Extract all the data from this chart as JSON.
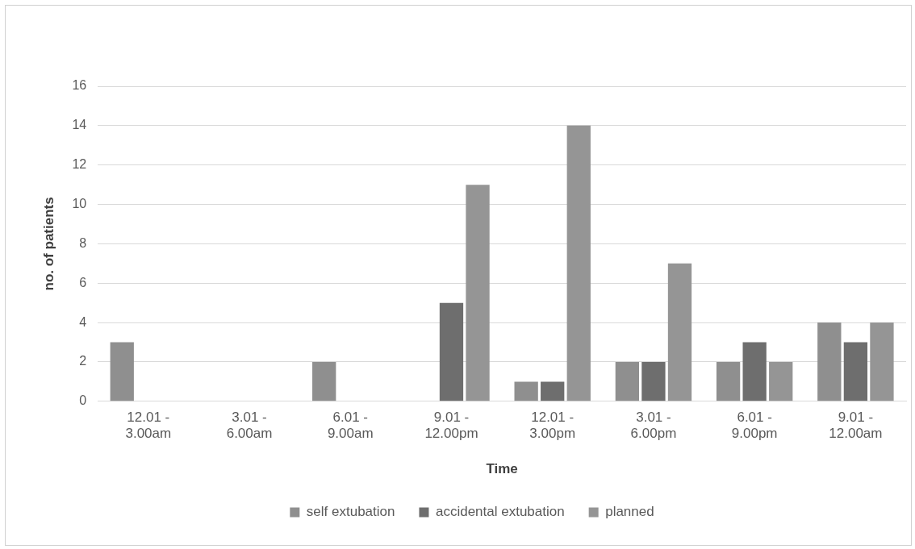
{
  "chart_data": {
    "type": "bar",
    "xlabel": "Time",
    "ylabel": "no. of patients",
    "categories": [
      "12.01 -\n3.00am",
      "3.01 -\n6.00am",
      "6.01 -\n9.00am",
      "9.01 -\n12.00pm",
      "12.01 -\n3.00pm",
      "3.01 -\n6.00pm",
      "6.01 -\n9.00pm",
      "9.01 -\n12.00am"
    ],
    "series": [
      {
        "name": "self extubation",
        "color": "#8f8f8f",
        "values": [
          3,
          0,
          2,
          0,
          1,
          2,
          2,
          4
        ]
      },
      {
        "name": "accidental extubation",
        "color": "#6e6e6e",
        "values": [
          0,
          0,
          0,
          5,
          1,
          2,
          3,
          3
        ]
      },
      {
        "name": "planned",
        "color": "#959595",
        "values": [
          0,
          0,
          0,
          11,
          14,
          7,
          2,
          4
        ]
      }
    ],
    "ylim": [
      0,
      16
    ],
    "yticks": [
      0,
      2,
      4,
      6,
      8,
      10,
      12,
      14,
      16
    ],
    "grid": "y",
    "legend": "bottom"
  }
}
